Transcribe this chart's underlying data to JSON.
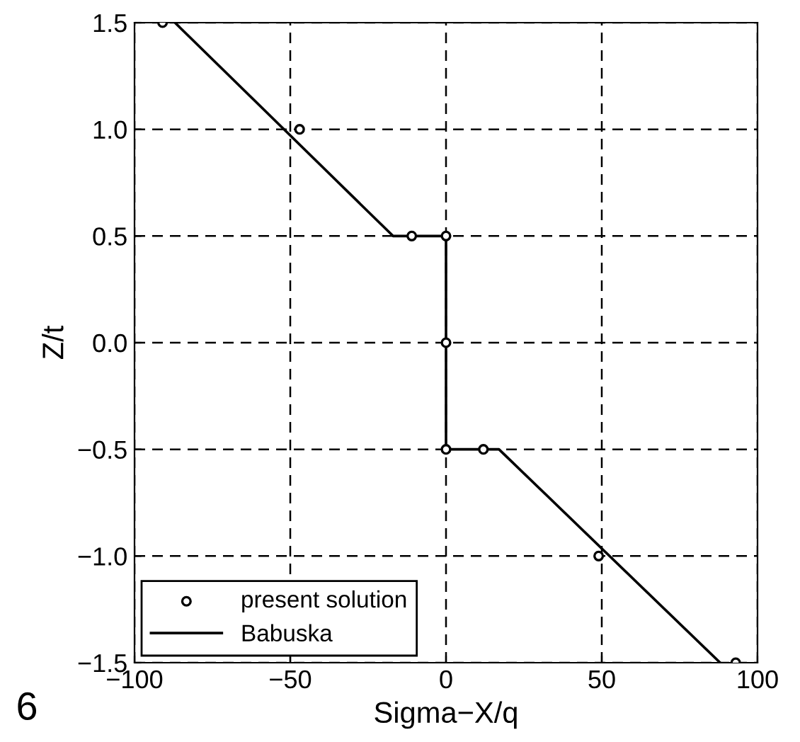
{
  "chart_data": {
    "type": "line",
    "xlabel": "Sigma−X/q",
    "ylabel": "Z/t",
    "annotations": [
      "6"
    ],
    "xlim": [
      -100,
      100
    ],
    "ylim": [
      -1.5,
      1.5
    ],
    "xticks": [
      -100,
      -50,
      0,
      50,
      100
    ],
    "yticks": [
      {
        "value": -1.5,
        "label": "−1.5"
      },
      {
        "value": -1.0,
        "label": "−1.0"
      },
      {
        "value": -0.5,
        "label": "−0.5"
      },
      {
        "value": 0,
        "label": "0.0"
      },
      {
        "value": 0.5,
        "label": "0.5"
      },
      {
        "value": 1,
        "label": "1.0"
      },
      {
        "value": 1.5,
        "label": "1.5"
      }
    ],
    "grid": true,
    "legend": "bottom left",
    "series": [
      {
        "name": "present solution",
        "type": "scatter",
        "marker": "circle",
        "color": "#000000",
        "x": [
          -91,
          -47,
          -11,
          0,
          0,
          0,
          12,
          49,
          93
        ],
        "values": [
          1.5,
          1.0,
          0.5,
          0.5,
          0.0,
          -0.5,
          -0.5,
          -1.0,
          -1.5
        ]
      },
      {
        "name": "Babuska",
        "color": "#000000",
        "line_style": "solid",
        "x": [
          -87,
          -17,
          0,
          0,
          17,
          88
        ],
        "values": [
          1.5,
          0.5,
          0.5,
          -0.5,
          -0.5,
          -1.5
        ]
      }
    ]
  }
}
